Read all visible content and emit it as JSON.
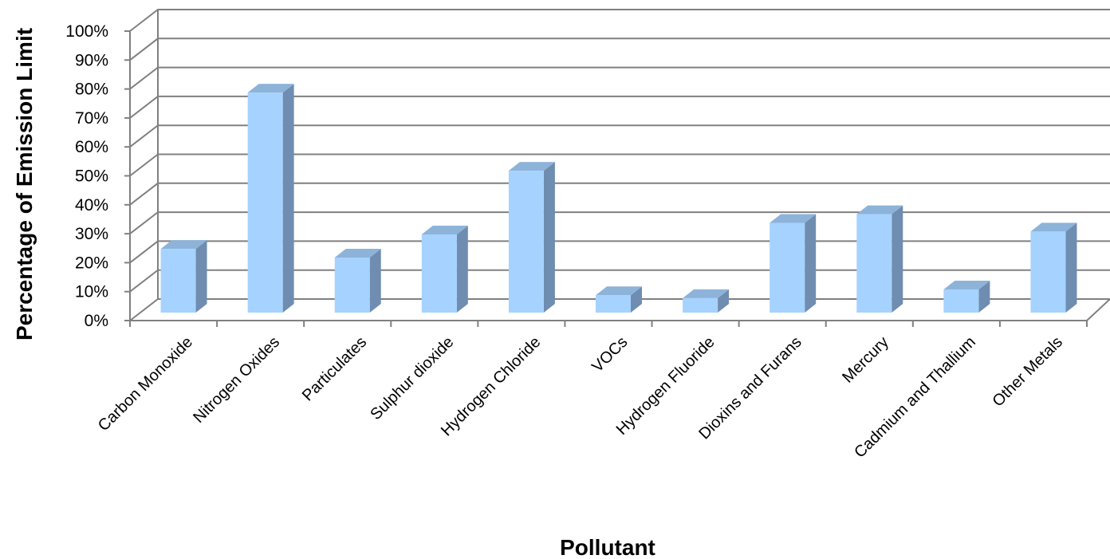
{
  "chart_data": {
    "type": "bar",
    "style": "3d-column",
    "title": "",
    "xlabel": "Pollutant",
    "ylabel": "Percentage of Emission Limit",
    "ylim": [
      0,
      100
    ],
    "y_ticks": [
      "0%",
      "10%",
      "20%",
      "30%",
      "40%",
      "50%",
      "60%",
      "70%",
      "80%",
      "90%",
      "100%"
    ],
    "grid": true,
    "legend": "none",
    "categories": [
      "Carbon Monoxide",
      "Nitrogen Oxides",
      "Particulates",
      "Sulphur dioxide",
      "Hydrogen Chloride",
      "VOCs",
      "Hydrogen Fluoride",
      "Dioxins and Furans",
      "Mercury",
      "Cadmium and Thallium",
      "Other Metals"
    ],
    "values": [
      22,
      76,
      19,
      27,
      49,
      6,
      5,
      31,
      34,
      8,
      28
    ],
    "colors": {
      "bar_front": "#a6d2ff",
      "bar_side": "#6f8db0",
      "bar_top": "#8db3d9",
      "grid": "#808080",
      "axis": "#808080"
    }
  }
}
